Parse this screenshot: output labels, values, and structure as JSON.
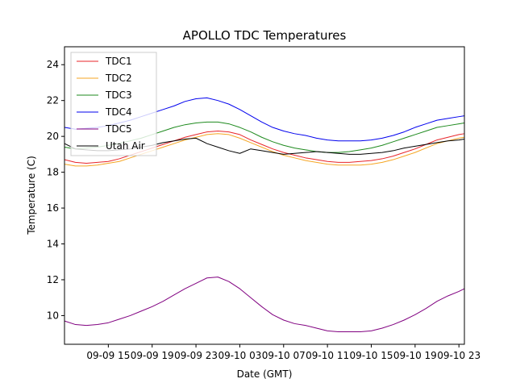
{
  "chart_data": {
    "type": "line",
    "title": "APOLLO TDC Temperatures",
    "xlabel": "Date (GMT)",
    "ylabel": "Temperature (C)",
    "grid": false,
    "legend_position": "top-left",
    "x_unit": "hours since 09-09 11:00 GMT",
    "xlim": [
      0,
      36.5
    ],
    "ylim": [
      8.4,
      25
    ],
    "xticks": [
      {
        "x": 4,
        "label": "09-09 15"
      },
      {
        "x": 8,
        "label": "09-09 19"
      },
      {
        "x": 12,
        "label": "09-09 23"
      },
      {
        "x": 16,
        "label": "09-10 03"
      },
      {
        "x": 20,
        "label": "09-10 07"
      },
      {
        "x": 24,
        "label": "09-10 11"
      },
      {
        "x": 28,
        "label": "09-10 15"
      },
      {
        "x": 32,
        "label": "09-10 19"
      },
      {
        "x": 36,
        "label": "09-10 23"
      }
    ],
    "yticks": [
      {
        "y": 10,
        "label": "10"
      },
      {
        "y": 12,
        "label": "12"
      },
      {
        "y": 14,
        "label": "14"
      },
      {
        "y": 16,
        "label": "16"
      },
      {
        "y": 18,
        "label": "18"
      },
      {
        "y": 20,
        "label": "20"
      },
      {
        "y": 22,
        "label": "22"
      },
      {
        "y": 24,
        "label": "24"
      }
    ],
    "series": [
      {
        "name": "TDC1",
        "color": "#e8252a",
        "x": [
          0,
          1,
          2,
          3,
          4,
          5,
          6,
          7,
          8,
          9,
          10,
          11,
          12,
          13,
          14,
          15,
          16,
          17,
          18,
          19,
          20,
          21,
          22,
          23,
          24,
          25,
          26,
          27,
          28,
          29,
          30,
          31,
          32,
          33,
          34,
          35,
          36,
          36.5
        ],
        "y": [
          18.7,
          18.55,
          18.5,
          18.55,
          18.6,
          18.75,
          18.95,
          19.15,
          19.35,
          19.55,
          19.75,
          19.95,
          20.1,
          20.25,
          20.3,
          20.25,
          20.1,
          19.8,
          19.55,
          19.3,
          19.1,
          18.95,
          18.8,
          18.7,
          18.6,
          18.55,
          18.55,
          18.6,
          18.65,
          18.75,
          18.9,
          19.1,
          19.3,
          19.55,
          19.8,
          19.95,
          20.1,
          20.15
        ]
      },
      {
        "name": "TDC2",
        "color": "#f5a623",
        "x": [
          0,
          1,
          2,
          3,
          4,
          5,
          6,
          7,
          8,
          9,
          10,
          11,
          12,
          13,
          14,
          15,
          16,
          17,
          18,
          19,
          20,
          21,
          22,
          23,
          24,
          25,
          26,
          27,
          28,
          29,
          30,
          31,
          32,
          33,
          34,
          35,
          36,
          36.5
        ],
        "y": [
          18.45,
          18.35,
          18.35,
          18.4,
          18.5,
          18.6,
          18.8,
          19.0,
          19.2,
          19.4,
          19.6,
          19.8,
          19.95,
          20.1,
          20.15,
          20.1,
          19.9,
          19.65,
          19.4,
          19.15,
          18.95,
          18.8,
          18.65,
          18.55,
          18.45,
          18.4,
          18.4,
          18.4,
          18.45,
          18.55,
          18.7,
          18.9,
          19.1,
          19.35,
          19.6,
          19.75,
          19.9,
          19.95
        ]
      },
      {
        "name": "TDC3",
        "color": "#1e8a1e",
        "x": [
          0,
          1,
          2,
          3,
          4,
          5,
          6,
          7,
          8,
          9,
          10,
          11,
          12,
          13,
          14,
          15,
          16,
          17,
          18,
          19,
          20,
          21,
          22,
          23,
          24,
          25,
          26,
          27,
          28,
          29,
          30,
          31,
          32,
          33,
          34,
          35,
          36,
          36.5
        ],
        "y": [
          19.4,
          19.3,
          19.35,
          19.4,
          19.5,
          19.6,
          19.75,
          19.9,
          20.1,
          20.3,
          20.5,
          20.65,
          20.75,
          20.8,
          20.8,
          20.7,
          20.5,
          20.25,
          19.95,
          19.7,
          19.5,
          19.35,
          19.25,
          19.15,
          19.1,
          19.1,
          19.15,
          19.25,
          19.35,
          19.5,
          19.7,
          19.9,
          20.1,
          20.3,
          20.5,
          20.6,
          20.7,
          20.75
        ]
      },
      {
        "name": "TDC4",
        "color": "#0000ee",
        "x": [
          0,
          1,
          2,
          3,
          4,
          5,
          6,
          7,
          8,
          9,
          10,
          11,
          12,
          13,
          14,
          15,
          16,
          17,
          18,
          19,
          20,
          21,
          22,
          23,
          24,
          25,
          26,
          27,
          28,
          29,
          30,
          31,
          32,
          33,
          34,
          35,
          36,
          36.5
        ],
        "y": [
          20.5,
          20.4,
          20.45,
          20.5,
          20.6,
          20.75,
          20.9,
          21.1,
          21.3,
          21.5,
          21.7,
          21.95,
          22.1,
          22.15,
          22.0,
          21.8,
          21.5,
          21.15,
          20.8,
          20.5,
          20.3,
          20.15,
          20.05,
          19.9,
          19.8,
          19.75,
          19.75,
          19.75,
          19.8,
          19.9,
          20.05,
          20.25,
          20.5,
          20.7,
          20.9,
          21.0,
          21.1,
          21.15
        ]
      },
      {
        "name": "TDC5",
        "color": "#800080",
        "x": [
          0,
          1,
          2,
          3,
          4,
          5,
          6,
          7,
          8,
          9,
          10,
          11,
          12,
          13,
          14,
          15,
          16,
          17,
          18,
          19,
          20,
          21,
          22,
          23,
          24,
          25,
          26,
          27,
          28,
          29,
          30,
          31,
          32,
          33,
          34,
          35,
          36,
          36.5
        ],
        "y": [
          9.7,
          9.5,
          9.45,
          9.5,
          9.6,
          9.8,
          10.0,
          10.25,
          10.5,
          10.8,
          11.15,
          11.5,
          11.8,
          12.1,
          12.15,
          11.9,
          11.5,
          11.0,
          10.5,
          10.05,
          9.75,
          9.55,
          9.45,
          9.3,
          9.15,
          9.1,
          9.1,
          9.1,
          9.15,
          9.3,
          9.5,
          9.75,
          10.05,
          10.4,
          10.8,
          11.1,
          11.35,
          11.5
        ]
      },
      {
        "name": "Utah Air",
        "color": "#000000",
        "x": [
          0,
          1,
          2,
          3,
          4,
          5,
          6,
          7,
          8,
          9,
          10,
          11,
          12,
          13,
          14,
          15,
          16,
          17,
          18,
          19,
          20,
          21,
          22,
          23,
          24,
          25,
          26,
          27,
          28,
          29,
          30,
          31,
          32,
          33,
          34,
          35,
          36,
          36.5
        ],
        "y": [
          19.6,
          19.3,
          19.25,
          19.2,
          19.2,
          19.25,
          19.3,
          19.4,
          19.5,
          19.65,
          19.75,
          19.85,
          19.9,
          19.6,
          19.4,
          19.2,
          19.05,
          19.3,
          19.2,
          19.1,
          19.0,
          19.05,
          19.1,
          19.15,
          19.1,
          19.05,
          19.0,
          19.0,
          19.05,
          19.1,
          19.2,
          19.35,
          19.45,
          19.55,
          19.65,
          19.75,
          19.8,
          19.85
        ]
      }
    ]
  }
}
